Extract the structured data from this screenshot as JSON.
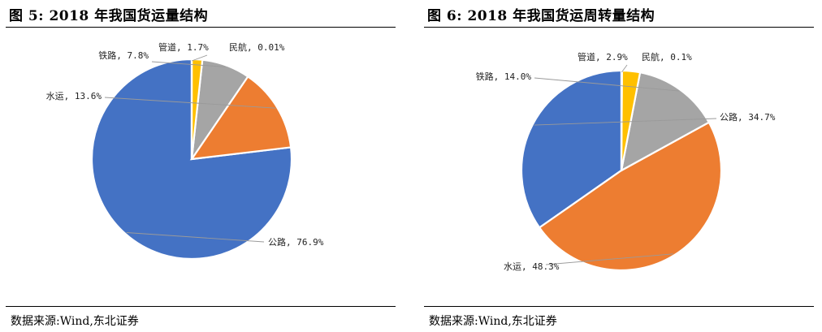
{
  "figures": [
    {
      "title": "图 5:  2018 年我国货运量结构",
      "source": "数据来源:Wind,东北证券"
    },
    {
      "title": "图 6:  2018 年我国货运周转量结构",
      "source": "数据来源:Wind,东北证券"
    }
  ],
  "chart_data": [
    {
      "type": "pie",
      "title": "",
      "slices": [
        {
          "name": "公路",
          "value": 76.9,
          "label": "公路, 76.9%",
          "color": "#4472C4"
        },
        {
          "name": "水运",
          "value": 13.6,
          "label": "水运, 13.6%",
          "color": "#ED7D31"
        },
        {
          "name": "铁路",
          "value": 7.8,
          "label": "铁路, 7.8%",
          "color": "#A5A5A5"
        },
        {
          "name": "管道",
          "value": 1.7,
          "label": "管道, 1.7%",
          "color": "#FFC000"
        },
        {
          "name": "民航",
          "value": 0.01,
          "label": "民航, 0.01%",
          "color": "#5B9BD5"
        }
      ]
    },
    {
      "type": "pie",
      "title": "",
      "slices": [
        {
          "name": "公路",
          "value": 34.7,
          "label": "公路, 34.7%",
          "color": "#4472C4"
        },
        {
          "name": "水运",
          "value": 48.3,
          "label": "水运, 48.3%",
          "color": "#ED7D31"
        },
        {
          "name": "铁路",
          "value": 14.0,
          "label": "铁路, 14.0%",
          "color": "#A5A5A5"
        },
        {
          "name": "管道",
          "value": 2.9,
          "label": "管道, 2.9%",
          "color": "#FFC000"
        },
        {
          "name": "民航",
          "value": 0.1,
          "label": "民航, 0.1%",
          "color": "#5B9BD5"
        }
      ]
    }
  ]
}
